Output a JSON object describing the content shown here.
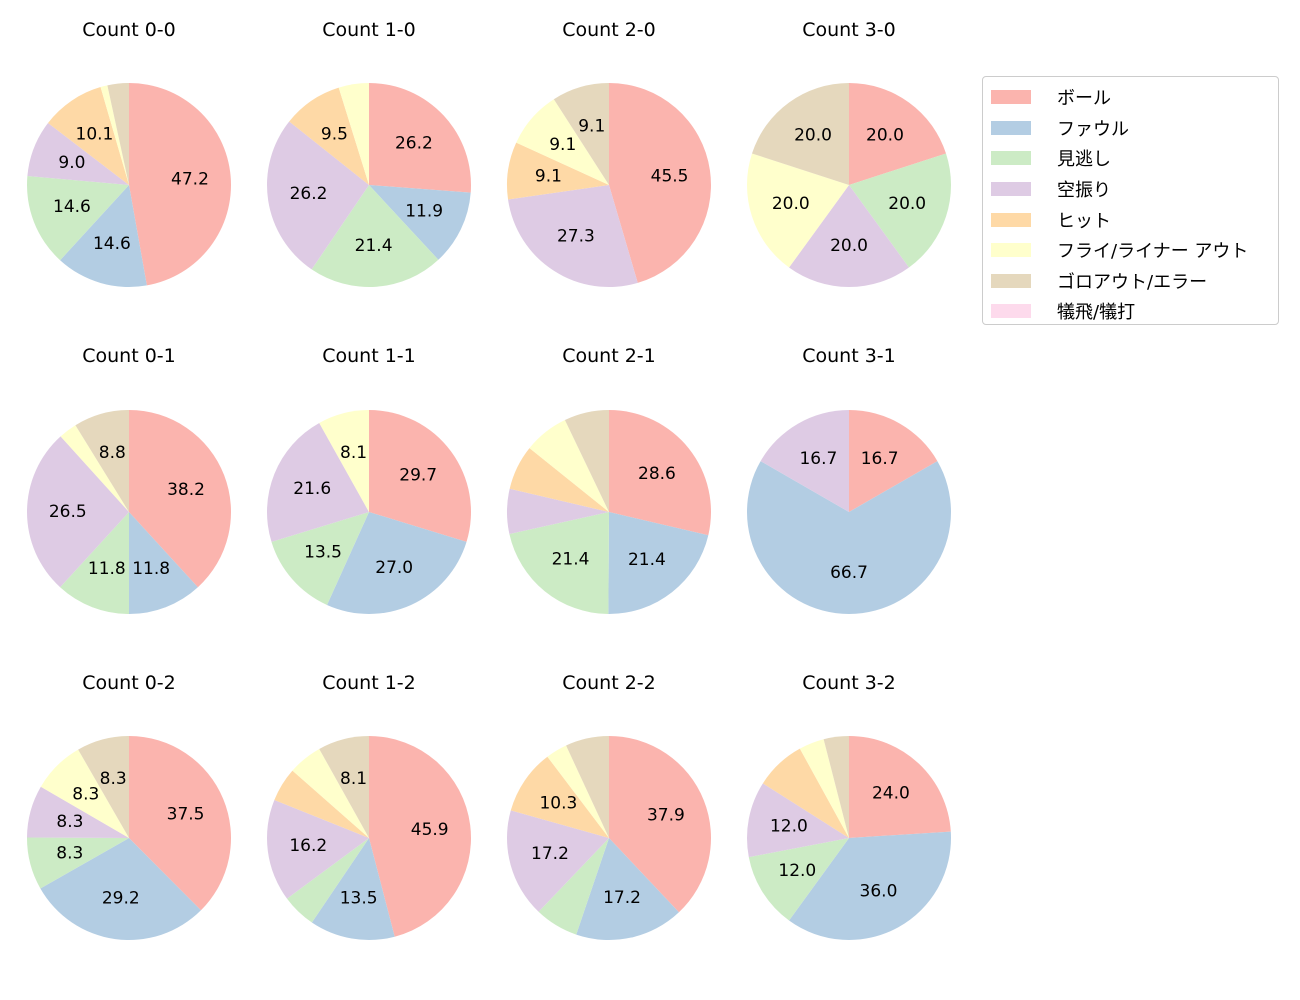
{
  "chart_data": {
    "type": "pie",
    "legend_position": "right",
    "legend": [
      "ボール",
      "ファウル",
      "見逃し",
      "空振り",
      "ヒット",
      "フライ/ライナー アウト",
      "ゴロアウト/エラー",
      "犠飛/犠打"
    ],
    "colors": [
      "#fbb4ae",
      "#b3cde3",
      "#ccebc5",
      "#decbe4",
      "#fed9a6",
      "#ffffcc",
      "#e5d8bd",
      "#fddaec"
    ],
    "label_threshold_pct": 8.05,
    "pies": [
      {
        "title": "Count 0-0",
        "values": [
          47.2,
          14.6,
          14.6,
          9.0,
          10.1,
          1.1,
          3.4,
          0
        ]
      },
      {
        "title": "Count 1-0",
        "values": [
          26.2,
          11.9,
          21.4,
          26.2,
          9.5,
          4.8,
          0,
          0
        ]
      },
      {
        "title": "Count 2-0",
        "values": [
          45.5,
          0,
          0,
          27.3,
          9.1,
          9.1,
          9.1,
          0
        ]
      },
      {
        "title": "Count 3-0",
        "values": [
          20.0,
          0,
          20.0,
          20.0,
          0,
          20.0,
          20.0,
          0
        ]
      },
      {
        "title": "Count 0-1",
        "values": [
          38.2,
          11.8,
          11.8,
          26.5,
          0,
          2.9,
          8.8,
          0
        ]
      },
      {
        "title": "Count 1-1",
        "values": [
          29.7,
          27.0,
          13.5,
          21.6,
          0,
          8.1,
          0,
          0
        ]
      },
      {
        "title": "Count 2-1",
        "values": [
          28.6,
          21.4,
          21.4,
          7.1,
          7.1,
          7.1,
          7.1,
          0
        ]
      },
      {
        "title": "Count 3-1",
        "values": [
          16.7,
          66.7,
          0,
          16.7,
          0,
          0,
          0,
          0
        ]
      },
      {
        "title": "Count 0-2",
        "values": [
          37.5,
          29.2,
          8.3,
          8.3,
          0,
          8.3,
          8.3,
          0
        ]
      },
      {
        "title": "Count 1-2",
        "values": [
          45.9,
          13.5,
          5.4,
          16.2,
          5.4,
          5.4,
          8.1,
          0
        ]
      },
      {
        "title": "Count 2-2",
        "values": [
          37.9,
          17.2,
          6.9,
          17.2,
          10.3,
          3.4,
          6.9,
          0
        ]
      },
      {
        "title": "Count 3-2",
        "values": [
          24.0,
          36.0,
          12.0,
          12.0,
          8.0,
          4.0,
          4.0,
          0
        ]
      }
    ]
  }
}
